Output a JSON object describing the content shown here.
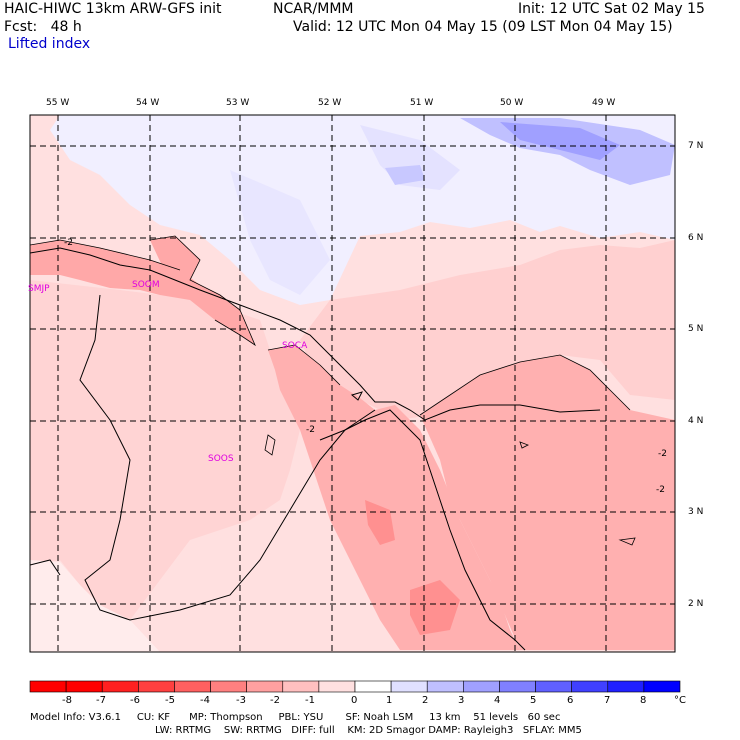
{
  "header": {
    "model": "HAIC-HIWC 13km ARW-GFS init",
    "org": "NCAR/MMM",
    "init": "Init: 12 UTC Sat 02 May 15",
    "fcst": "Fcst:   48 h",
    "valid": "Valid: 12 UTC Mon 04 May 15 (09 LST Mon 04 May 15)",
    "field": "Lifted index"
  },
  "map": {
    "lon_labels": [
      "55 W",
      "54 W",
      "53 W",
      "52 W",
      "51 W",
      "50 W",
      "49 W"
    ],
    "lat_labels": [
      "7 N",
      "6 N",
      "5 N",
      "4 N",
      "3 N",
      "2 N"
    ],
    "stations": [
      "SMJP",
      "SOCA",
      "SOOS",
      "SOOM"
    ],
    "contour_labels": [
      "-2",
      "-2",
      "-2",
      "-2"
    ]
  },
  "colorbar": {
    "values": [
      "-8",
      "-7",
      "-6",
      "-5",
      "-4",
      "-3",
      "-2",
      "-1",
      "0",
      "1",
      "2",
      "3",
      "4",
      "5",
      "6",
      "7",
      "8"
    ],
    "unit": "°C",
    "colors": [
      "#ff0000",
      "#ff2020",
      "#ff4040",
      "#ff6060",
      "#ff8080",
      "#ffa0a0",
      "#ffc0c0",
      "#ffe0e0",
      "#ffffff",
      "#e0e0ff",
      "#c0c0ff",
      "#a0a0ff",
      "#8080ff",
      "#6060ff",
      "#4040ff",
      "#2020ff",
      "#0000ff"
    ]
  },
  "footer": {
    "line1": "Model Info: V3.6.1     CU: KF      MP: Thompson     PBL: YSU       SF: Noah LSM     13 km    51 levels   60 sec",
    "line2": "LW: RRTMG    SW: RRTMG   DIFF: full    KM: 2D Smagor DAMP: Rayleigh3   SFLAY: MM5"
  }
}
